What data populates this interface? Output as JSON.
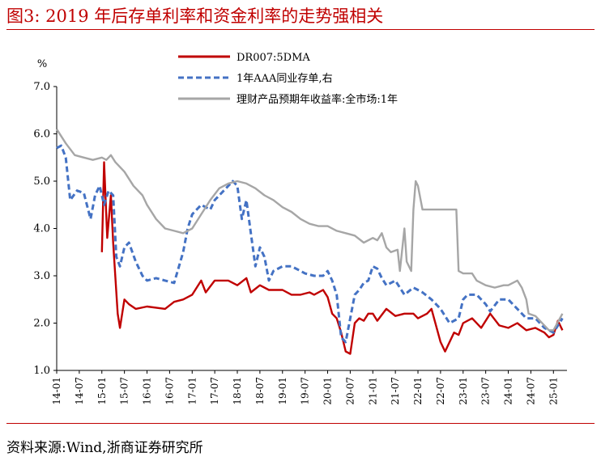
{
  "header": {
    "title": "图3:  2019 年后存单利率和资金利率的走势强相关"
  },
  "footer": {
    "source": "资料来源:Wind,浙商证券研究所"
  },
  "chart_data": {
    "type": "line",
    "title": "",
    "ylabel": "%",
    "ylim": [
      1.0,
      7.0
    ],
    "yticks": [
      "1.0",
      "2.0",
      "3.0",
      "4.0",
      "5.0",
      "6.0",
      "7.0"
    ],
    "xlim": [
      2014.0,
      2025.3
    ],
    "xticks": [
      "14-01",
      "14-07",
      "15-01",
      "15-07",
      "16-01",
      "16-07",
      "17-01",
      "17-07",
      "18-01",
      "18-07",
      "19-01",
      "19-07",
      "20-01",
      "20-07",
      "21-01",
      "21-07",
      "22-01",
      "22-07",
      "23-01",
      "23-07",
      "24-01",
      "24-07",
      "25-01"
    ],
    "legend_position": "top-center",
    "series": [
      {
        "name": "DR007:5DMA",
        "color": "#c00000",
        "style": "solid",
        "x": [
          2014.0,
          2014.5,
          2014.9,
          2015.0,
          2015.05,
          2015.12,
          2015.2,
          2015.25,
          2015.35,
          2015.4,
          2015.5,
          2015.6,
          2015.75,
          2016.0,
          2016.4,
          2016.6,
          2016.8,
          2017.0,
          2017.2,
          2017.3,
          2017.5,
          2017.8,
          2018.0,
          2018.2,
          2018.3,
          2018.5,
          2018.7,
          2018.9,
          2019.0,
          2019.2,
          2019.4,
          2019.6,
          2019.7,
          2019.9,
          2020.0,
          2020.1,
          2020.2,
          2020.3,
          2020.4,
          2020.5,
          2020.6,
          2020.7,
          2020.8,
          2020.9,
          2021.0,
          2021.1,
          2021.3,
          2021.5,
          2021.7,
          2021.9,
          2022.0,
          2022.2,
          2022.3,
          2022.5,
          2022.6,
          2022.8,
          2022.9,
          2023.0,
          2023.2,
          2023.4,
          2023.6,
          2023.8,
          2024.0,
          2024.2,
          2024.4,
          2024.6,
          2024.8,
          2024.9,
          2025.0,
          2025.1,
          2025.2
        ],
        "values": [
          null,
          null,
          null,
          3.5,
          5.4,
          3.8,
          4.7,
          3.7,
          2.2,
          1.9,
          2.5,
          2.4,
          2.3,
          2.35,
          2.3,
          2.45,
          2.5,
          2.6,
          2.9,
          2.65,
          2.9,
          2.9,
          2.8,
          2.95,
          2.65,
          2.8,
          2.7,
          2.7,
          2.7,
          2.6,
          2.6,
          2.65,
          2.6,
          2.7,
          2.55,
          2.2,
          2.1,
          1.8,
          1.4,
          1.35,
          2.0,
          2.1,
          2.05,
          2.2,
          2.2,
          2.05,
          2.3,
          2.15,
          2.2,
          2.2,
          2.1,
          2.2,
          2.3,
          1.6,
          1.4,
          1.8,
          1.75,
          2.0,
          2.1,
          1.9,
          2.2,
          1.95,
          1.9,
          2.0,
          1.85,
          1.9,
          1.8,
          1.7,
          1.75,
          2.05,
          1.85
        ]
      },
      {
        "name": "1年AAA同业存单,右",
        "color": "#4472c4",
        "style": "dashed",
        "x": [
          2014.0,
          2014.1,
          2014.2,
          2014.3,
          2014.45,
          2014.6,
          2014.75,
          2014.85,
          2014.95,
          2015.05,
          2015.15,
          2015.25,
          2015.32,
          2015.4,
          2015.5,
          2015.6,
          2015.75,
          2015.9,
          2016.0,
          2016.2,
          2016.4,
          2016.6,
          2016.8,
          2016.9,
          2017.0,
          2017.2,
          2017.4,
          2017.5,
          2017.7,
          2017.9,
          2018.0,
          2018.1,
          2018.2,
          2018.3,
          2018.4,
          2018.5,
          2018.6,
          2018.7,
          2018.8,
          2019.0,
          2019.2,
          2019.4,
          2019.5,
          2019.7,
          2019.9,
          2020.0,
          2020.1,
          2020.2,
          2020.3,
          2020.4,
          2020.5,
          2020.6,
          2020.7,
          2020.8,
          2020.9,
          2021.0,
          2021.1,
          2021.2,
          2021.3,
          2021.5,
          2021.7,
          2021.9,
          2022.0,
          2022.1,
          2022.3,
          2022.5,
          2022.7,
          2022.9,
          2023.0,
          2023.1,
          2023.3,
          2023.5,
          2023.6,
          2023.8,
          2024.0,
          2024.2,
          2024.4,
          2024.6,
          2024.8,
          2025.0,
          2025.1,
          2025.2
        ],
        "values": [
          5.7,
          5.75,
          5.5,
          4.6,
          4.8,
          4.75,
          4.2,
          4.7,
          4.9,
          4.5,
          4.8,
          4.7,
          3.4,
          3.2,
          3.6,
          3.7,
          3.3,
          3.0,
          2.9,
          2.95,
          2.9,
          2.85,
          3.5,
          4.0,
          4.3,
          4.5,
          4.4,
          4.6,
          4.8,
          5.0,
          4.9,
          4.2,
          4.6,
          3.9,
          3.2,
          3.6,
          3.4,
          2.9,
          3.1,
          3.2,
          3.2,
          3.1,
          3.05,
          3.0,
          3.0,
          3.1,
          2.9,
          2.6,
          1.7,
          1.6,
          2.1,
          2.6,
          2.7,
          2.85,
          2.9,
          3.2,
          3.15,
          2.95,
          2.8,
          2.9,
          2.6,
          2.75,
          2.7,
          2.65,
          2.5,
          2.3,
          2.0,
          2.1,
          2.5,
          2.6,
          2.6,
          2.4,
          2.25,
          2.5,
          2.5,
          2.3,
          2.1,
          2.1,
          1.9,
          1.8,
          1.95,
          2.1
        ]
      },
      {
        "name": "理财产品预期年收益率:全市场:1年",
        "color": "#a6a6a6",
        "style": "solid",
        "x": [
          2014.0,
          2014.2,
          2014.4,
          2014.6,
          2014.8,
          2015.0,
          2015.1,
          2015.2,
          2015.3,
          2015.5,
          2015.7,
          2015.9,
          2016.0,
          2016.2,
          2016.4,
          2016.6,
          2016.8,
          2017.0,
          2017.2,
          2017.4,
          2017.6,
          2017.8,
          2018.0,
          2018.2,
          2018.4,
          2018.6,
          2018.8,
          2019.0,
          2019.2,
          2019.4,
          2019.6,
          2019.8,
          2020.0,
          2020.2,
          2020.4,
          2020.6,
          2020.8,
          2021.0,
          2021.1,
          2021.2,
          2021.3,
          2021.4,
          2021.55,
          2021.6,
          2021.7,
          2021.75,
          2021.85,
          2021.9,
          2021.95,
          2022.0,
          2022.1,
          2022.3,
          2022.6,
          2022.85,
          2022.9,
          2023.0,
          2023.2,
          2023.3,
          2023.5,
          2023.7,
          2023.9,
          2024.0,
          2024.2,
          2024.3,
          2024.4,
          2024.45,
          2024.6,
          2024.8,
          2024.9,
          2025.0,
          2025.2
        ],
        "values": [
          6.1,
          5.8,
          5.55,
          5.5,
          5.45,
          5.5,
          5.45,
          5.55,
          5.4,
          5.2,
          4.9,
          4.7,
          4.5,
          4.2,
          4.0,
          3.95,
          3.9,
          4.0,
          4.3,
          4.6,
          4.85,
          4.95,
          5.0,
          4.95,
          4.85,
          4.7,
          4.6,
          4.45,
          4.35,
          4.2,
          4.1,
          4.05,
          4.05,
          3.95,
          3.9,
          3.85,
          3.7,
          3.8,
          3.75,
          3.9,
          3.6,
          3.5,
          3.55,
          3.1,
          4.0,
          3.3,
          3.1,
          4.4,
          5.0,
          4.9,
          4.4,
          4.4,
          4.4,
          4.4,
          3.1,
          3.05,
          3.05,
          2.9,
          2.8,
          2.75,
          2.8,
          2.8,
          2.9,
          2.75,
          2.5,
          2.2,
          2.15,
          1.95,
          1.85,
          1.85,
          2.2
        ]
      }
    ]
  }
}
